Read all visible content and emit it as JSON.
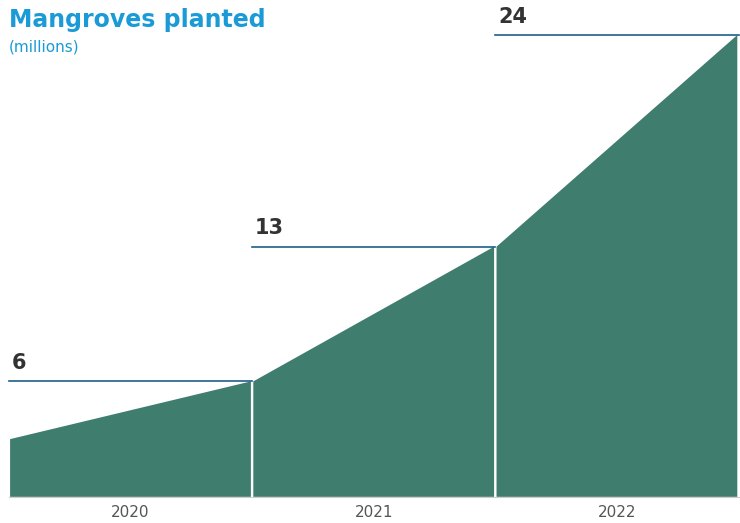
{
  "chart_data": {
    "type": "bar",
    "title": "Mangroves planted",
    "subtitle": "(millions)",
    "categories": [
      "2020",
      "2021",
      "2022"
    ],
    "values": [
      6,
      13,
      24
    ],
    "color": "#3f7d6e",
    "ylim": [
      0,
      24
    ],
    "data_labels": true,
    "tick_labels": "x",
    "grid": false
  }
}
